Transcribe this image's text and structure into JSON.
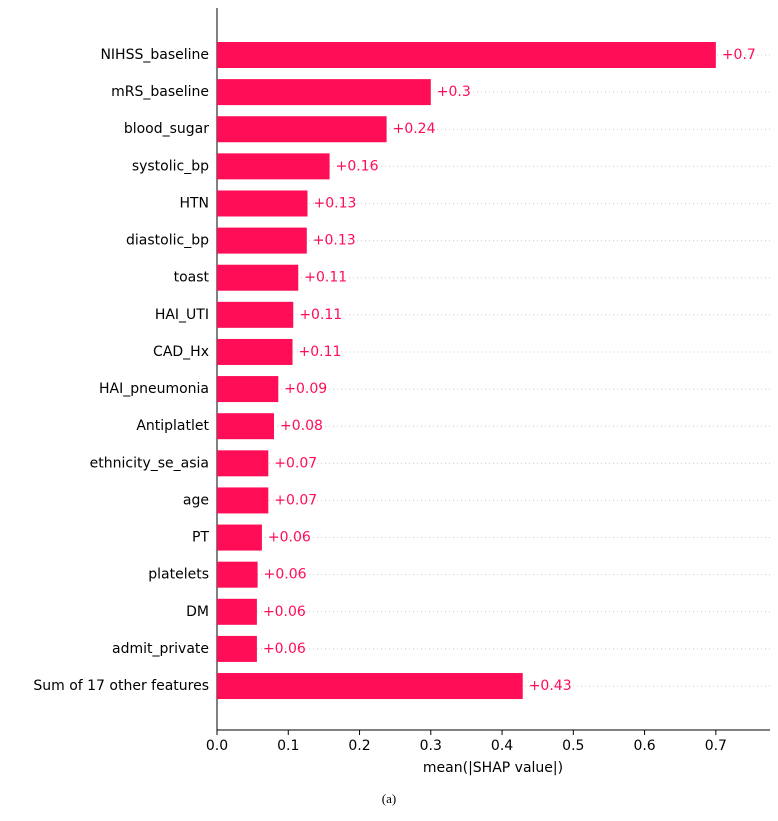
{
  "chart_data": {
    "type": "bar",
    "orientation": "horizontal",
    "categories": [
      "NIHSS_baseline",
      "mRS_baseline",
      "blood_sugar",
      "systolic_bp",
      "HTN",
      "diastolic_bp",
      "toast",
      "HAI_UTI",
      "CAD_Hx",
      "HAI_pneumonia",
      "Antiplatlet",
      "ethnicity_se_asia",
      "age",
      "PT",
      "platelets",
      "DM",
      "admit_private",
      "Sum of 17 other features"
    ],
    "values": [
      0.7,
      0.3,
      0.238,
      0.158,
      0.127,
      0.126,
      0.114,
      0.107,
      0.106,
      0.086,
      0.08,
      0.072,
      0.072,
      0.063,
      0.057,
      0.056,
      0.056,
      0.429
    ],
    "value_labels": [
      "+0.7",
      "+0.3",
      "+0.24",
      "+0.16",
      "+0.13",
      "+0.13",
      "+0.11",
      "+0.11",
      "+0.11",
      "+0.09",
      "+0.08",
      "+0.07",
      "+0.07",
      "+0.06",
      "+0.06",
      "+0.06",
      "+0.06",
      "+0.43"
    ],
    "color": "#ff0d57",
    "xlabel": "mean(|SHAP value|)",
    "xlim": [
      0,
      0.776
    ],
    "xticks": [
      {
        "value": 0,
        "label": "0.0"
      },
      0.1,
      0.2,
      0.3,
      0.4,
      0.5,
      0.6,
      0.7
    ],
    "caption": "(a)"
  }
}
